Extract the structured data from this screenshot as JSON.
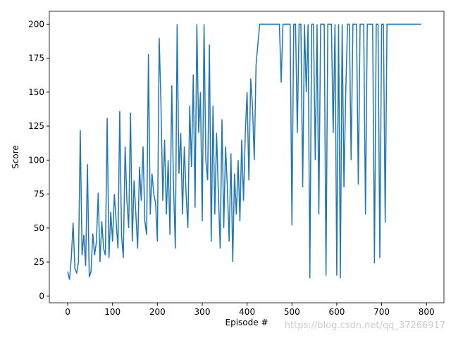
{
  "chart_data": {
    "type": "line",
    "x_label": "Episode #",
    "y_label": "Score",
    "annotation": "https://blog.csdn.net/qq_37266917",
    "xlim": [
      -41,
      839
    ],
    "ylim": [
      -5,
      209.5
    ],
    "xticks": [
      0,
      100,
      200,
      300,
      400,
      500,
      600,
      700,
      800
    ],
    "yticks": [
      0,
      25,
      50,
      75,
      100,
      125,
      150,
      175,
      200
    ],
    "x": [
      0,
      4,
      8,
      12,
      16,
      20,
      24,
      28,
      32,
      36,
      40,
      44,
      48,
      52,
      56,
      60,
      64,
      68,
      72,
      76,
      80,
      84,
      88,
      92,
      96,
      100,
      104,
      108,
      112,
      116,
      120,
      124,
      128,
      132,
      136,
      140,
      144,
      148,
      152,
      156,
      160,
      164,
      168,
      172,
      176,
      180,
      184,
      188,
      192,
      196,
      200,
      204,
      208,
      212,
      216,
      220,
      224,
      228,
      232,
      236,
      240,
      244,
      248,
      252,
      256,
      260,
      264,
      268,
      272,
      276,
      280,
      284,
      288,
      292,
      296,
      300,
      304,
      308,
      312,
      316,
      320,
      324,
      328,
      332,
      336,
      340,
      344,
      348,
      352,
      356,
      360,
      364,
      368,
      372,
      376,
      380,
      384,
      388,
      392,
      396,
      400,
      404,
      408,
      412,
      416,
      420,
      424,
      428,
      432,
      436,
      440,
      444,
      448,
      452,
      456,
      460,
      464,
      468,
      472,
      476,
      480,
      484,
      488,
      492,
      496,
      500,
      504,
      508,
      512,
      516,
      520,
      524,
      528,
      532,
      536,
      540,
      544,
      548,
      552,
      556,
      560,
      564,
      568,
      572,
      576,
      580,
      584,
      588,
      592,
      596,
      600,
      604,
      608,
      612,
      616,
      620,
      624,
      628,
      632,
      636,
      640,
      644,
      648,
      652,
      656,
      660,
      664,
      668,
      672,
      676,
      680,
      684,
      688,
      692,
      696,
      700,
      704,
      708,
      712,
      716,
      720,
      724,
      728,
      732,
      736,
      740,
      744,
      748,
      752,
      756,
      760,
      764,
      768,
      772,
      776,
      780,
      784,
      788
    ],
    "series": [
      {
        "color": "#1f77b4",
        "values": [
          18,
          12,
          28,
          54,
          20,
          17,
          25,
          122,
          30,
          45,
          22,
          97,
          14,
          18,
          46,
          30,
          40,
          76,
          25,
          55,
          35,
          30,
          131,
          28,
          62,
          40,
          75,
          55,
          35,
          136,
          45,
          28,
          110,
          70,
          50,
          135,
          40,
          85,
          60,
          35,
          95,
          70,
          110,
          55,
          45,
          178,
          60,
          90,
          75,
          68,
          40,
          190,
          140,
          70,
          115,
          60,
          100,
          45,
          155,
          80,
          35,
          200,
          90,
          120,
          60,
          110,
          75,
          50,
          140,
          95,
          163,
          65,
          200,
          120,
          150,
          55,
          200,
          100,
          85,
          185,
          40,
          140,
          60,
          120,
          75,
          35,
          130,
          50,
          110,
          80,
          40,
          105,
          25,
          90,
          60,
          100,
          55,
          115,
          70,
          120,
          150,
          85,
          160,
          140,
          100,
          170,
          185,
          200,
          200,
          200,
          200,
          200,
          200,
          200,
          200,
          200,
          200,
          200,
          200,
          157,
          200,
          200,
          200,
          200,
          200,
          52,
          200,
          200,
          120,
          200,
          200,
          80,
          200,
          150,
          200,
          13,
          200,
          200,
          100,
          200,
          60,
          200,
          200,
          200,
          15,
          200,
          200,
          200,
          120,
          200,
          15,
          200,
          13,
          200,
          80,
          150,
          200,
          200,
          100,
          200,
          200,
          200,
          82,
          200,
          200,
          200,
          60,
          200,
          200,
          200,
          200,
          24,
          200,
          200,
          28,
          200,
          200,
          54,
          200,
          200,
          200,
          200,
          200,
          200,
          200,
          200,
          200,
          200,
          200,
          200,
          200,
          200,
          200,
          200,
          200,
          200,
          200,
          200
        ]
      }
    ]
  }
}
